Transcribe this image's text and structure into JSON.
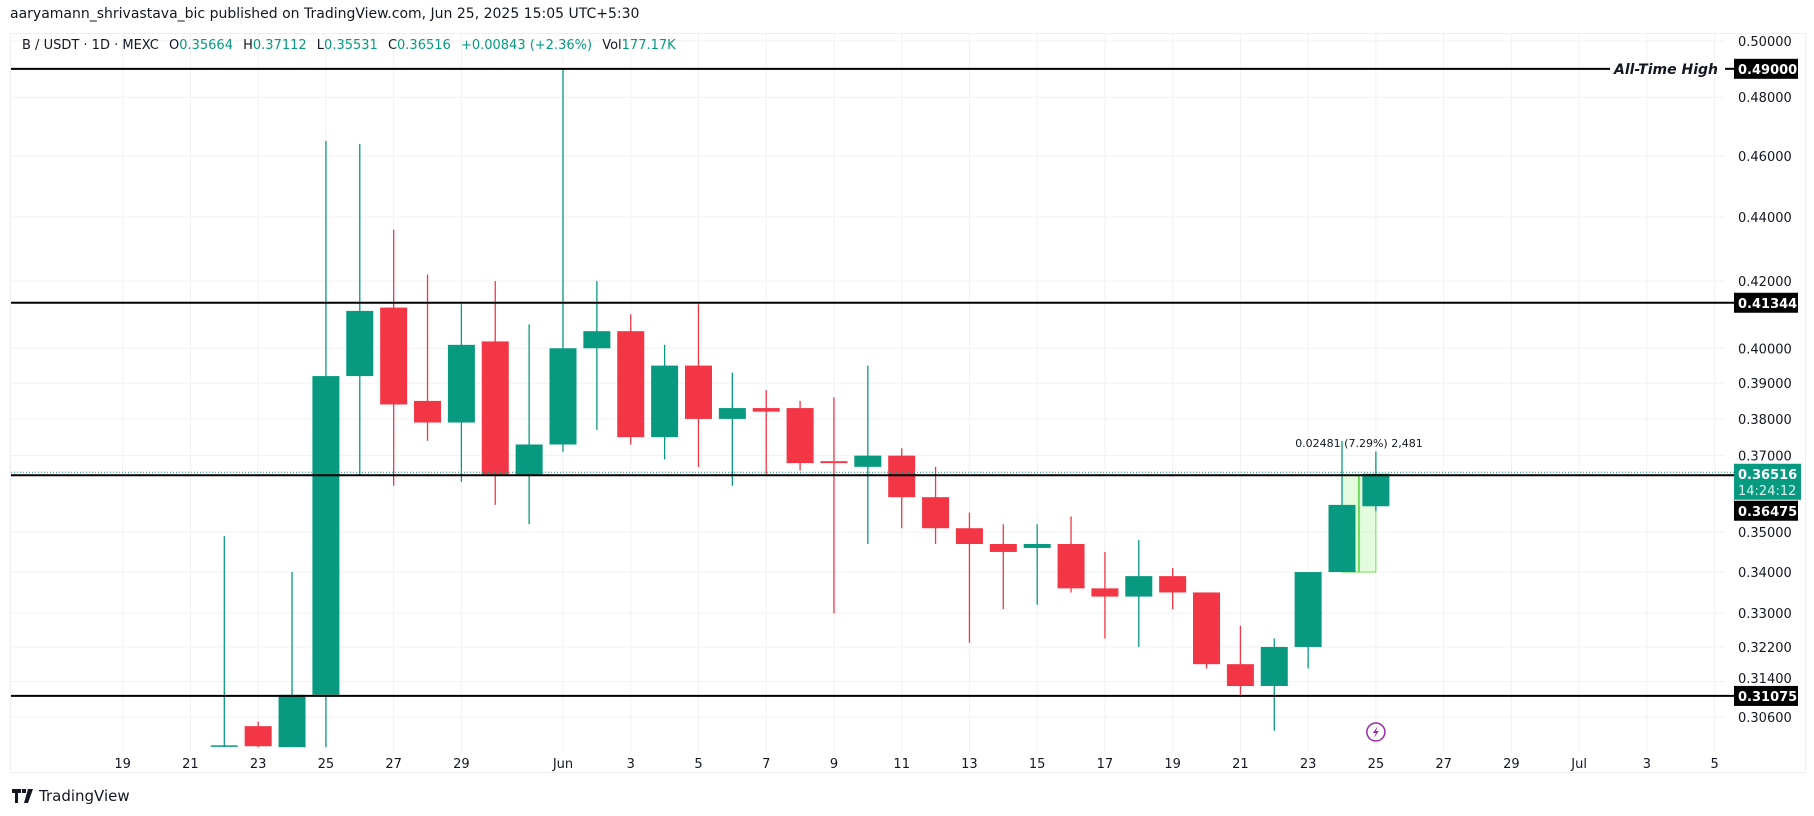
{
  "author_line": "aaryamann_shrivastava_bic published on TradingView.com, Jun 25, 2025 15:05 UTC+5:30",
  "legend": {
    "symbol": "B / USDT · 1D · MEXC",
    "open_label": "O",
    "open": "0.35664",
    "high_label": "H",
    "high": "0.37112",
    "low_label": "L",
    "low": "0.35531",
    "close_label": "C",
    "close": "0.36516",
    "change": "+0.00843 (+2.36%)",
    "vol_label": "Vol",
    "vol": "177.17K"
  },
  "footer": {
    "brand": "TradingView",
    "logo_icon": "tradingview-logo-icon"
  },
  "colors": {
    "up": "#089981",
    "down": "#f23645",
    "level": "#000000",
    "measure": "#b2f5a0",
    "alert": "#9c27b0"
  },
  "chart_data": {
    "type": "candlestick",
    "scale": "log",
    "ylim": [
      0.2994,
      0.5
    ],
    "grid": true,
    "y_ticks": [
      "0.50000",
      "0.48000",
      "0.46000",
      "0.44000",
      "0.42000",
      "0.40000",
      "0.39000",
      "0.38000",
      "0.37000",
      "0.35000",
      "0.34000",
      "0.33000",
      "0.32200",
      "0.31400",
      "0.30600"
    ],
    "x_ticks": [
      {
        "date": "2025-05-19",
        "label": "19"
      },
      {
        "date": "2025-05-21",
        "label": "21"
      },
      {
        "date": "2025-05-23",
        "label": "23"
      },
      {
        "date": "2025-05-25",
        "label": "25"
      },
      {
        "date": "2025-05-27",
        "label": "27"
      },
      {
        "date": "2025-05-29",
        "label": "29"
      },
      {
        "date": "2025-06-01",
        "label": "Jun"
      },
      {
        "date": "2025-06-03",
        "label": "3"
      },
      {
        "date": "2025-06-05",
        "label": "5"
      },
      {
        "date": "2025-06-07",
        "label": "7"
      },
      {
        "date": "2025-06-09",
        "label": "9"
      },
      {
        "date": "2025-06-11",
        "label": "11"
      },
      {
        "date": "2025-06-13",
        "label": "13"
      },
      {
        "date": "2025-06-15",
        "label": "15"
      },
      {
        "date": "2025-06-17",
        "label": "17"
      },
      {
        "date": "2025-06-19",
        "label": "19"
      },
      {
        "date": "2025-06-21",
        "label": "21"
      },
      {
        "date": "2025-06-23",
        "label": "23"
      },
      {
        "date": "2025-06-25",
        "label": "25"
      },
      {
        "date": "2025-06-27",
        "label": "27"
      },
      {
        "date": "2025-06-29",
        "label": "29"
      },
      {
        "date": "2025-07-01",
        "label": "Jul"
      },
      {
        "date": "2025-07-03",
        "label": "3"
      },
      {
        "date": "2025-07-05",
        "label": "5"
      }
    ],
    "candles": [
      {
        "date": "2025-05-22",
        "o": 0.2996,
        "h": 0.349,
        "l": 0.2994,
        "c": 0.2998
      },
      {
        "date": "2025-05-23",
        "o": 0.304,
        "h": 0.305,
        "l": 0.2994,
        "c": 0.2996
      },
      {
        "date": "2025-05-24",
        "o": 0.2994,
        "h": 0.34,
        "l": 0.2994,
        "c": 0.311
      },
      {
        "date": "2025-05-25",
        "o": 0.311,
        "h": 0.465,
        "l": 0.2994,
        "c": 0.392
      },
      {
        "date": "2025-05-26",
        "o": 0.392,
        "h": 0.464,
        "l": 0.365,
        "c": 0.411
      },
      {
        "date": "2025-05-27",
        "o": 0.412,
        "h": 0.436,
        "l": 0.362,
        "c": 0.384
      },
      {
        "date": "2025-05-28",
        "o": 0.385,
        "h": 0.422,
        "l": 0.374,
        "c": 0.379
      },
      {
        "date": "2025-05-29",
        "o": 0.379,
        "h": 0.413,
        "l": 0.363,
        "c": 0.401
      },
      {
        "date": "2025-05-30",
        "o": 0.402,
        "h": 0.42,
        "l": 0.357,
        "c": 0.365
      },
      {
        "date": "2025-05-31",
        "o": 0.365,
        "h": 0.407,
        "l": 0.352,
        "c": 0.373
      },
      {
        "date": "2025-06-01",
        "o": 0.373,
        "h": 0.49,
        "l": 0.371,
        "c": 0.4
      },
      {
        "date": "2025-06-02",
        "o": 0.4,
        "h": 0.42,
        "l": 0.377,
        "c": 0.405
      },
      {
        "date": "2025-06-03",
        "o": 0.405,
        "h": 0.41,
        "l": 0.373,
        "c": 0.375
      },
      {
        "date": "2025-06-04",
        "o": 0.375,
        "h": 0.401,
        "l": 0.369,
        "c": 0.395
      },
      {
        "date": "2025-06-05",
        "o": 0.395,
        "h": 0.413,
        "l": 0.367,
        "c": 0.38
      },
      {
        "date": "2025-06-06",
        "o": 0.38,
        "h": 0.393,
        "l": 0.362,
        "c": 0.383
      },
      {
        "date": "2025-06-07",
        "o": 0.383,
        "h": 0.388,
        "l": 0.365,
        "c": 0.382
      },
      {
        "date": "2025-06-08",
        "o": 0.383,
        "h": 0.385,
        "l": 0.366,
        "c": 0.368
      },
      {
        "date": "2025-06-09",
        "o": 0.3685,
        "h": 0.386,
        "l": 0.33,
        "c": 0.368
      },
      {
        "date": "2025-06-10",
        "o": 0.367,
        "h": 0.395,
        "l": 0.347,
        "c": 0.37
      },
      {
        "date": "2025-06-11",
        "o": 0.37,
        "h": 0.372,
        "l": 0.351,
        "c": 0.359
      },
      {
        "date": "2025-06-12",
        "o": 0.359,
        "h": 0.367,
        "l": 0.347,
        "c": 0.351
      },
      {
        "date": "2025-06-13",
        "o": 0.351,
        "h": 0.355,
        "l": 0.323,
        "c": 0.347
      },
      {
        "date": "2025-06-14",
        "o": 0.347,
        "h": 0.352,
        "l": 0.331,
        "c": 0.345
      },
      {
        "date": "2025-06-15",
        "o": 0.346,
        "h": 0.352,
        "l": 0.332,
        "c": 0.347
      },
      {
        "date": "2025-06-16",
        "o": 0.347,
        "h": 0.354,
        "l": 0.335,
        "c": 0.336
      },
      {
        "date": "2025-06-17",
        "o": 0.336,
        "h": 0.345,
        "l": 0.324,
        "c": 0.334
      },
      {
        "date": "2025-06-18",
        "o": 0.334,
        "h": 0.348,
        "l": 0.322,
        "c": 0.339
      },
      {
        "date": "2025-06-19",
        "o": 0.339,
        "h": 0.341,
        "l": 0.331,
        "c": 0.335
      },
      {
        "date": "2025-06-20",
        "o": 0.335,
        "h": 0.335,
        "l": 0.317,
        "c": 0.318
      },
      {
        "date": "2025-06-21",
        "o": 0.318,
        "h": 0.327,
        "l": 0.311,
        "c": 0.313
      },
      {
        "date": "2025-06-22",
        "o": 0.313,
        "h": 0.324,
        "l": 0.303,
        "c": 0.322
      },
      {
        "date": "2025-06-23",
        "o": 0.322,
        "h": 0.34,
        "l": 0.317,
        "c": 0.34
      },
      {
        "date": "2025-06-24",
        "o": 0.34,
        "h": 0.374,
        "l": 0.34,
        "c": 0.357
      },
      {
        "date": "2025-06-25",
        "o": 0.35664,
        "h": 0.37112,
        "l": 0.35531,
        "c": 0.36516
      }
    ],
    "levels": [
      {
        "price": 0.49,
        "label": "0.49000",
        "annotation": "All-Time High"
      },
      {
        "price": 0.41344,
        "label": "0.41344",
        "annotation": ""
      },
      {
        "price": 0.36475,
        "label": "0.36475",
        "annotation": ""
      },
      {
        "price": 0.31075,
        "label": "0.31075",
        "annotation": ""
      }
    ],
    "last_price": {
      "price": 0.36516,
      "label": "0.36516",
      "countdown": "14:24:12"
    },
    "measure": {
      "from_date": "2025-06-24",
      "to_date": "2025-06-25",
      "low": 0.34,
      "high": 0.36475,
      "label": "0.02481 (7.29%) 2,481"
    },
    "alert_marker": {
      "date": "2025-06-25",
      "icon": "lightning-icon"
    }
  }
}
